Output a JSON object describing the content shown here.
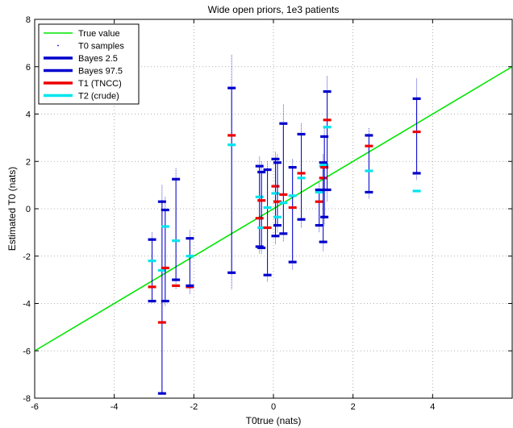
{
  "chart_data": {
    "type": "scatter",
    "title": "Wide open priors, 1e3 patients",
    "xlabel": "T0true (nats)",
    "ylabel": "Estimated T0 (nats)",
    "xlim": [
      -6,
      6
    ],
    "ylim": [
      -8,
      8
    ],
    "xticks": [
      -6,
      -4,
      -2,
      0,
      2,
      4
    ],
    "yticks": [
      -8,
      -6,
      -4,
      -2,
      0,
      2,
      4,
      6,
      8
    ],
    "grid": true,
    "legend_position": "top-left",
    "legend": [
      {
        "label": "True value",
        "color": "#00e600",
        "style": "line"
      },
      {
        "label": "T0 samples",
        "color": "#0000cc",
        "style": "dot"
      },
      {
        "label": "Bayes 2.5",
        "color": "#0000cc",
        "style": "thick"
      },
      {
        "label": "Bayes 97.5",
        "color": "#0000cc",
        "style": "thick"
      },
      {
        "label": "T1 (TNCC)",
        "color": "#ee0000",
        "style": "thick"
      },
      {
        "label": "T2 (crude)",
        "color": "#00e5ee",
        "style": "thick"
      }
    ],
    "true_value_line": {
      "x": [
        -6,
        6
      ],
      "y": [
        -6,
        6
      ]
    },
    "patients": [
      {
        "x": -3.05,
        "b25": -3.9,
        "b975": -1.3,
        "t1": -3.3,
        "t2": -2.2,
        "smin": -4.0,
        "smax": -1.0
      },
      {
        "x": -2.8,
        "b25": -7.8,
        "b975": 0.3,
        "t1": -4.8,
        "t2": -2.6,
        "smin": -7.8,
        "smax": 1.0
      },
      {
        "x": -2.72,
        "b25": -3.9,
        "b975": -0.05,
        "t1": -2.5,
        "t2": -0.75,
        "smin": -4.1,
        "smax": 0.5
      },
      {
        "x": -2.45,
        "b25": -3.0,
        "b975": 1.25,
        "t1": -3.25,
        "t2": -1.35,
        "smin": -3.4,
        "smax": 1.7
      },
      {
        "x": -2.1,
        "b25": -3.25,
        "b975": -1.25,
        "t1": -3.3,
        "t2": -2.0,
        "smin": -3.6,
        "smax": -0.9
      },
      {
        "x": -1.05,
        "b25": -2.7,
        "b975": 5.1,
        "t1": 3.1,
        "t2": 2.7,
        "smin": -3.4,
        "smax": 6.5
      },
      {
        "x": -0.35,
        "b25": -1.6,
        "b975": 1.8,
        "t1": -0.4,
        "t2": 0.5,
        "smin": -1.9,
        "smax": 2.2
      },
      {
        "x": -0.3,
        "b25": -1.65,
        "b975": 1.55,
        "t1": 0.35,
        "t2": -0.8,
        "smin": -1.9,
        "smax": 2.0
      },
      {
        "x": -0.15,
        "b25": -2.8,
        "b975": 1.65,
        "t1": -0.8,
        "t2": 0.05,
        "smin": -3.1,
        "smax": 2.0
      },
      {
        "x": 0.05,
        "b25": -1.15,
        "b975": 2.1,
        "t1": 0.95,
        "t2": 0.65,
        "smin": -1.5,
        "smax": 2.4
      },
      {
        "x": 0.1,
        "b25": -0.7,
        "b975": 1.95,
        "t1": 0.3,
        "t2": -0.35,
        "smin": -1.0,
        "smax": 2.3
      },
      {
        "x": 0.25,
        "b25": -1.05,
        "b975": 3.6,
        "t1": 0.6,
        "t2": 0.25,
        "smin": -1.4,
        "smax": 4.4
      },
      {
        "x": 0.48,
        "b25": -2.25,
        "b975": 1.75,
        "t1": 0.05,
        "t2": 0.55,
        "smin": -2.6,
        "smax": 2.1
      },
      {
        "x": 0.7,
        "b25": -0.45,
        "b975": 3.15,
        "t1": 1.5,
        "t2": 1.3,
        "smin": -0.8,
        "smax": 3.6
      },
      {
        "x": 1.15,
        "b25": -0.7,
        "b975": 0.8,
        "t1": 0.3,
        "t2": 0.7,
        "smin": -1.0,
        "smax": 1.1
      },
      {
        "x": 1.25,
        "b25": -1.4,
        "b975": 1.95,
        "t1": 1.3,
        "t2": 1.8,
        "smin": -1.8,
        "smax": 2.3
      },
      {
        "x": 1.28,
        "b25": -0.35,
        "b975": 3.05,
        "t1": 1.75,
        "t2": 1.85,
        "smin": -0.7,
        "smax": 3.4
      },
      {
        "x": 1.35,
        "b25": 0.8,
        "b975": 4.95,
        "t1": 3.75,
        "t2": 3.45,
        "smin": 0.3,
        "smax": 5.6
      },
      {
        "x": 2.4,
        "b25": 0.7,
        "b975": 3.1,
        "t1": 2.65,
        "t2": 1.6,
        "smin": 0.4,
        "smax": 3.4
      },
      {
        "x": 3.6,
        "b25": 1.5,
        "b975": 4.65,
        "t1": 3.25,
        "t2": 0.75,
        "smin": 1.2,
        "smax": 5.5
      }
    ]
  }
}
